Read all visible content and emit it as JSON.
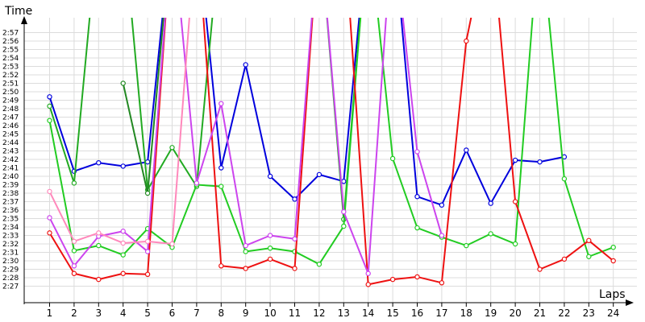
{
  "chart_data": {
    "type": "line",
    "xlabel": "Laps",
    "ylabel": "Time",
    "x": [
      1,
      2,
      3,
      4,
      5,
      6,
      7,
      8,
      9,
      10,
      11,
      12,
      13,
      14,
      15,
      16,
      17,
      18,
      19,
      20,
      21,
      22,
      23,
      24
    ],
    "y_ticks": [
      "2:27",
      "2:28",
      "2:29",
      "2:30",
      "2:31",
      "2:32",
      "2:33",
      "2:34",
      "2:35",
      "2:36",
      "2:37",
      "2:38",
      "2:39",
      "2:40",
      "2:41",
      "2:42",
      "2:43",
      "2:44",
      "2:45",
      "2:46",
      "2:47",
      "2:48",
      "2:49",
      "2:50",
      "2:51",
      "2:52",
      "2:53",
      "2:54",
      "2:55",
      "2:56",
      "2:57"
    ],
    "ylim": [
      "2:26",
      "2:58"
    ],
    "grid": true,
    "series": [
      {
        "color": "#0000dd",
        "values": [
          "2:49.4",
          "2:40.6",
          "2:41.6",
          "2:41.2",
          "2:41.7",
          "3:10",
          "3:10",
          "2:41.0",
          "2:53.2",
          "2:40.0",
          "2:37.3",
          "2:40.2",
          "2:39.4",
          "3:10",
          "3:10",
          "2:37.6",
          "2:36.6",
          "2:43.1",
          "2:36.8",
          "2:41.9",
          "2:41.7",
          "2:42.3",
          null,
          null
        ]
      },
      {
        "color": "#22aa22",
        "values": [
          "2:48.3",
          "2:39.2",
          "3:10",
          "3:10",
          "2:38.4",
          "2:43.4",
          "2:38.8",
          "3:10",
          "3:10",
          "3:10",
          "3:10",
          "3:10",
          "2:34.9",
          "3:10",
          "3:10",
          null,
          null,
          null,
          null,
          null,
          null,
          null,
          null,
          null
        ]
      },
      {
        "color": "#228822",
        "values": [
          null,
          null,
          null,
          "2:51.0",
          "2:38.0",
          "3:10",
          null,
          null,
          null,
          null,
          null,
          null,
          null,
          null,
          null,
          null,
          null,
          null,
          null,
          null,
          null,
          null,
          null,
          null
        ]
      },
      {
        "color": "#22cc22",
        "values": [
          "2:46.6",
          "2:31.2",
          "2:31.8",
          "2:30.7",
          "2:33.8",
          "2:31.6",
          "2:39.0",
          "2:38.8",
          "2:31.1",
          "2:31.5",
          "2:31.1",
          "2:29.6",
          "2:34.1",
          "3:10",
          "2:42.1",
          "2:33.9",
          "2:32.8",
          "2:31.8",
          "2:33.2",
          "2:32.0",
          "3:10",
          "2:39.7",
          "2:30.5",
          "2:31.6"
        ]
      },
      {
        "color": "#ee1111",
        "values": [
          "2:33.3",
          "2:28.5",
          "2:27.8",
          "2:28.5",
          "2:28.4",
          "3:10",
          "3:10",
          "2:29.4",
          "2:29.1",
          "2:30.2",
          "2:29.1",
          "3:10",
          "3:10",
          "2:27.2",
          "2:27.8",
          "2:28.1",
          "2:27.4",
          "2:56.0",
          "3:10",
          "2:37.0",
          "2:29.0",
          "2:30.2",
          "2:32.4",
          "2:30.0"
        ]
      },
      {
        "color": "#cc44ee",
        "values": [
          "2:35.1",
          "2:29.4",
          "2:32.9",
          "2:33.5",
          "2:31.1",
          "3:10",
          "2:39.2",
          "2:48.6",
          "2:31.8",
          "2:33.0",
          "2:32.6",
          "3:10",
          "2:35.8",
          "2:28.5",
          "3:10",
          "2:42.9",
          "2:33.0",
          null,
          null,
          null,
          null,
          null,
          null,
          null
        ]
      },
      {
        "color": "#ff88bb",
        "values": [
          "2:38.2",
          "2:32.3",
          "2:33.3",
          "2:32.1",
          "2:32.3",
          "2:32.0",
          "3:10",
          null,
          null,
          null,
          null,
          null,
          null,
          null,
          null,
          null,
          null,
          null,
          null,
          null,
          null,
          null,
          null,
          null
        ]
      }
    ]
  }
}
